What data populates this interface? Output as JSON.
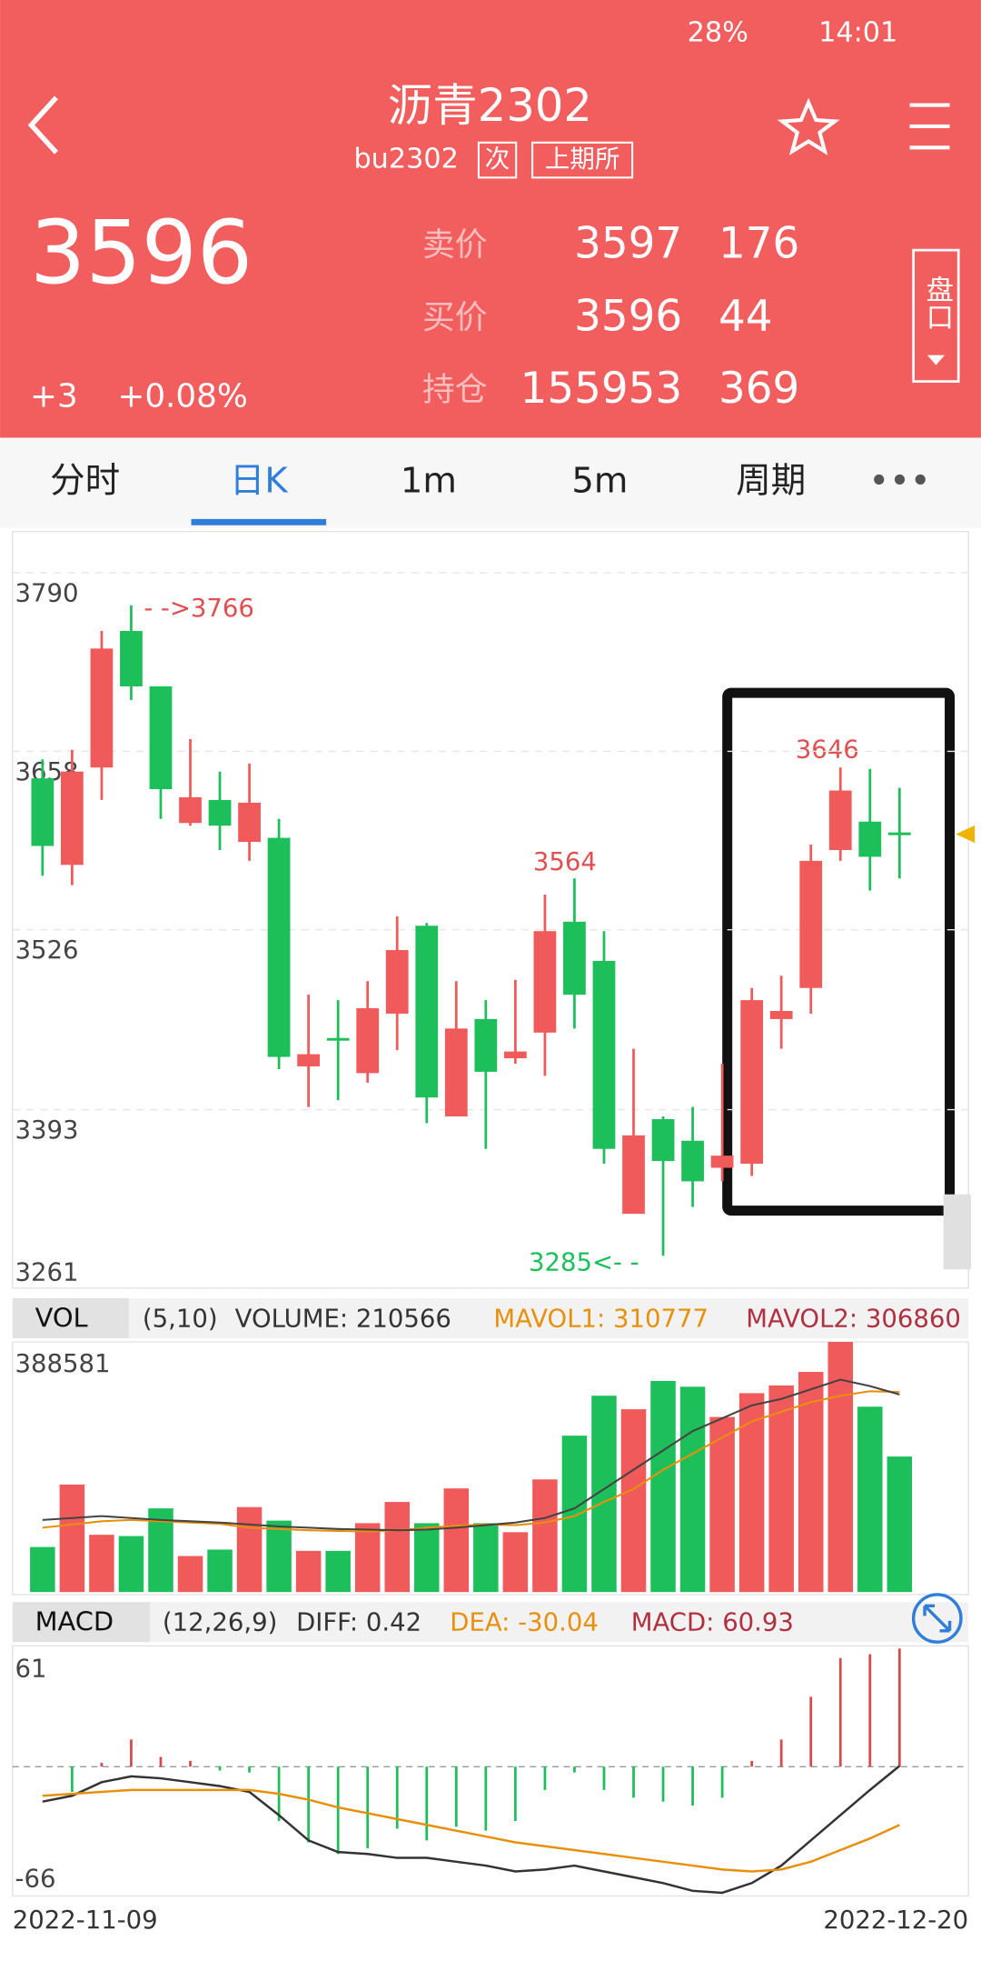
{
  "status_bar": {
    "time": "14:01",
    "battery": "28%"
  },
  "header": {
    "title": "沥青2302",
    "code": "bu2302",
    "tag": "次",
    "exchange": "上期所"
  },
  "quote": {
    "price": "3596",
    "change": "+3",
    "change_pct": "+0.08%",
    "rows": [
      {
        "label": "卖价",
        "price": "3597",
        "qty": "176"
      },
      {
        "label": "买价",
        "price": "3596",
        "qty": "44"
      },
      {
        "label": "持仓",
        "price": "155953",
        "qty": "369"
      }
    ],
    "side_button": "盘口"
  },
  "tabs": [
    "分时",
    "日K",
    "1m",
    "5m",
    "周期"
  ],
  "active_tab": 1,
  "chart_data": [
    {
      "type": "candlestick",
      "up_color": "#f05a5a",
      "down_color": "#1dbf5b",
      "ylim": [
        3261,
        3790
      ],
      "yticks": [
        3790,
        3658,
        3526,
        3393,
        3261
      ],
      "grid": true,
      "annotations": [
        "- ->3766",
        "3646",
        "3564",
        "3285<- -"
      ],
      "open": [
        3638,
        3574,
        3646,
        3747,
        3706,
        3605,
        3622,
        3591,
        3594,
        3425,
        3446,
        3420,
        3464,
        3529,
        3388,
        3460,
        3431,
        3450,
        3532,
        3503,
        3316,
        3386,
        3370,
        3350,
        3353,
        3460,
        3483,
        3585,
        3606,
        3598
      ],
      "high": [
        3652,
        3659,
        3747,
        3766,
        3706,
        3667,
        3643,
        3649,
        3608,
        3478,
        3474,
        3488,
        3536,
        3531,
        3488,
        3474,
        3489,
        3552,
        3564,
        3525,
        3438,
        3388,
        3395,
        3427,
        3483,
        3492,
        3589,
        3646,
        3645,
        3631
      ],
      "low": [
        3566,
        3559,
        3622,
        3696,
        3608,
        3603,
        3585,
        3577,
        3423,
        3395,
        3400,
        3413,
        3437,
        3383,
        3388,
        3364,
        3427,
        3418,
        3453,
        3353,
        3316,
        3285,
        3321,
        3340,
        3344,
        3438,
        3464,
        3577,
        3555,
        3564
      ],
      "close": [
        3588,
        3643,
        3734,
        3706,
        3630,
        3624,
        3603,
        3620,
        3432,
        3434,
        3444,
        3468,
        3511,
        3402,
        3453,
        3421,
        3436,
        3525,
        3478,
        3364,
        3374,
        3355,
        3340,
        3359,
        3474,
        3466,
        3577,
        3629,
        3580,
        3596
      ]
    },
    {
      "type": "bar",
      "title": "VOL",
      "params": "(5,10)",
      "ylim": [
        0,
        388581
      ],
      "yticks": [
        388581
      ],
      "legend": [
        "VOLUME: 210566",
        "MAVOL1: 310777",
        "MAVOL2: 306860"
      ],
      "series": [
        {
          "name": "VOLUME",
          "values": [
            70000,
            167000,
            89000,
            87000,
            130000,
            56000,
            66000,
            132000,
            111000,
            64000,
            64000,
            107000,
            140000,
            107000,
            161000,
            107000,
            93000,
            175000,
            243000,
            305000,
            284000,
            328000,
            319000,
            272000,
            309000,
            321000,
            342000,
            388581,
            288000,
            210566
          ]
        },
        {
          "name": "MAVOL1",
          "color": "#e8900c",
          "values": [
            100000,
            105000,
            110000,
            112000,
            110000,
            108000,
            106000,
            100000,
            98000,
            96000,
            95000,
            94000,
            96000,
            100000,
            103000,
            105000,
            104000,
            108000,
            118000,
            140000,
            160000,
            190000,
            215000,
            240000,
            265000,
            280000,
            295000,
            305000,
            312000,
            310777
          ]
        },
        {
          "name": "MAVOL2",
          "color": "#444444",
          "values": [
            112000,
            115000,
            118000,
            115000,
            112000,
            110000,
            108000,
            105000,
            102000,
            100000,
            98000,
            97000,
            96000,
            97000,
            100000,
            104000,
            108000,
            115000,
            130000,
            160000,
            190000,
            220000,
            250000,
            270000,
            290000,
            300000,
            315000,
            330000,
            320000,
            306860
          ]
        }
      ]
    },
    {
      "type": "macd",
      "title": "MACD",
      "params": "(12,26,9)",
      "ylim": [
        -66,
        61
      ],
      "yticks": [
        61,
        -66
      ],
      "legend": [
        "DIFF: 0.42",
        "DEA: -30.04",
        "MACD: 60.93"
      ],
      "x_start": "2022-11-09",
      "x_end": "2022-12-20",
      "series": [
        {
          "name": "MACD",
          "values": [
            0,
            -13,
            2,
            14,
            5,
            3,
            -2,
            -3,
            -28,
            -39,
            -45,
            -42,
            -32,
            -38,
            -31,
            -33,
            -28,
            -12,
            -3,
            -12,
            -16,
            -18,
            -20,
            -16,
            3,
            14,
            36,
            56,
            58,
            60.93
          ]
        },
        {
          "name": "DIFF",
          "color": "#333333",
          "values": [
            -18,
            -15,
            -8,
            -5,
            -6,
            -8,
            -10,
            -13,
            -25,
            -38,
            -44,
            -45,
            -47,
            -47,
            -49,
            -51,
            -54,
            -53,
            -51,
            -54,
            -57,
            -60,
            -64,
            -65,
            -60,
            -51,
            -38,
            -25,
            -12,
            0.42
          ]
        },
        {
          "name": "DEA",
          "color": "#e8900c",
          "values": [
            -15,
            -14,
            -13,
            -12,
            -12,
            -12,
            -12,
            -12,
            -14,
            -17,
            -21,
            -24,
            -27,
            -30,
            -33,
            -36,
            -39,
            -41,
            -43,
            -45,
            -47,
            -49,
            -51,
            -53,
            -54,
            -53,
            -49,
            -43,
            -37,
            -30.04
          ]
        }
      ]
    }
  ]
}
